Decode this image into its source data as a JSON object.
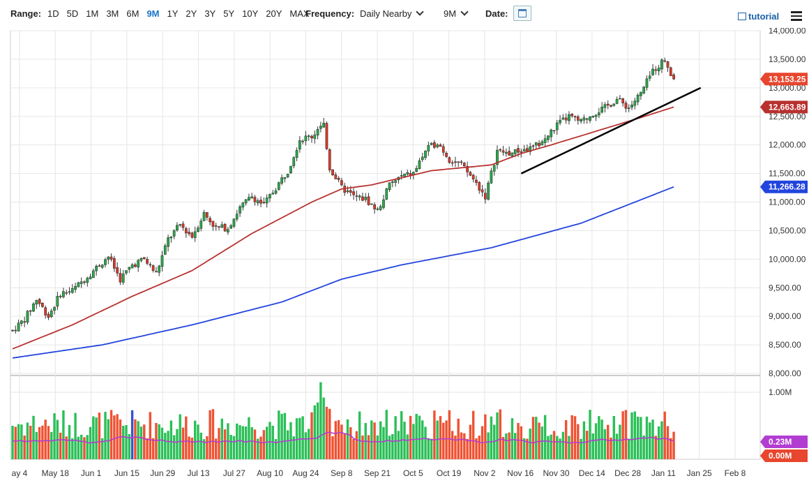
{
  "toolbar": {
    "range_label": "Range:",
    "ranges": [
      "1D",
      "5D",
      "1M",
      "3M",
      "6M",
      "9M",
      "1Y",
      "2Y",
      "3Y",
      "5Y",
      "10Y",
      "20Y",
      "MAX"
    ],
    "active_range": "9M",
    "frequency_label": "Frequency:",
    "frequency_value": "Daily Nearby",
    "period_value": "9M",
    "date_label": "Date:",
    "tutorial_label": "tutorial"
  },
  "chart_data": {
    "type": "candlestick",
    "x_ticks": [
      "ay 4",
      "May 18",
      "Jun 1",
      "Jun 15",
      "Jun 29",
      "Jul 13",
      "Jul 27",
      "Aug 10",
      "Aug 24",
      "Sep 8",
      "Sep 21",
      "Oct 5",
      "Oct 19",
      "Nov 2",
      "Nov 16",
      "Nov 30",
      "Dec 14",
      "Dec 28",
      "Jan 11",
      "Jan 25",
      "Feb 8"
    ],
    "y_ticks": [
      "14,000.00",
      "13,500.00",
      "13,000.00",
      "12,500.00",
      "12,000.00",
      "11,500.00",
      "11,000.00",
      "10,500.00",
      "10,000.00",
      "9,500.00",
      "9,000.00",
      "8,500.00",
      "8,000.00"
    ],
    "ylim": [
      8000,
      14000
    ],
    "last_price": "13,153.25",
    "ma_short_value": "12,663.89",
    "ma_long_value": "11,266.28",
    "price_anchors": [
      [
        0,
        8750
      ],
      [
        4,
        8950
      ],
      [
        8,
        9300
      ],
      [
        12,
        9000
      ],
      [
        16,
        9400
      ],
      [
        20,
        9450
      ],
      [
        24,
        9650
      ],
      [
        28,
        9850
      ],
      [
        32,
        10050
      ],
      [
        36,
        9650
      ],
      [
        40,
        9900
      ],
      [
        44,
        10000
      ],
      [
        48,
        9750
      ],
      [
        52,
        10350
      ],
      [
        56,
        10600
      ],
      [
        60,
        10400
      ],
      [
        64,
        10800
      ],
      [
        68,
        10550
      ],
      [
        72,
        10550
      ],
      [
        76,
        10900
      ],
      [
        80,
        11100
      ],
      [
        84,
        10950
      ],
      [
        88,
        11250
      ],
      [
        92,
        11550
      ],
      [
        96,
        12100
      ],
      [
        100,
        12150
      ],
      [
        104,
        12350
      ],
      [
        106,
        11600
      ],
      [
        110,
        11250
      ],
      [
        114,
        11100
      ],
      [
        118,
        11050
      ],
      [
        122,
        10850
      ],
      [
        126,
        11300
      ],
      [
        130,
        11450
      ],
      [
        134,
        11500
      ],
      [
        138,
        11900
      ],
      [
        142,
        12050
      ],
      [
        146,
        11750
      ],
      [
        150,
        11650
      ],
      [
        154,
        11400
      ],
      [
        158,
        11100
      ],
      [
        162,
        11900
      ],
      [
        166,
        11850
      ],
      [
        170,
        11900
      ],
      [
        174,
        11950
      ],
      [
        178,
        12100
      ],
      [
        182,
        12350
      ],
      [
        186,
        12500
      ],
      [
        190,
        12400
      ],
      [
        194,
        12550
      ],
      [
        198,
        12650
      ],
      [
        202,
        12800
      ],
      [
        206,
        12650
      ],
      [
        210,
        12900
      ],
      [
        214,
        13300
      ],
      [
        218,
        13500
      ],
      [
        221,
        13153
      ]
    ],
    "ma_short_anchors": [
      [
        0,
        8430
      ],
      [
        20,
        8850
      ],
      [
        40,
        9350
      ],
      [
        60,
        9800
      ],
      [
        80,
        10450
      ],
      [
        100,
        11000
      ],
      [
        110,
        11230
      ],
      [
        120,
        11300
      ],
      [
        140,
        11550
      ],
      [
        160,
        11650
      ],
      [
        170,
        11850
      ],
      [
        180,
        12000
      ],
      [
        200,
        12320
      ],
      [
        210,
        12480
      ],
      [
        221,
        12664
      ]
    ],
    "ma_long_anchors": [
      [
        0,
        8270
      ],
      [
        30,
        8500
      ],
      [
        60,
        8850
      ],
      [
        90,
        9250
      ],
      [
        110,
        9650
      ],
      [
        130,
        9900
      ],
      [
        160,
        10200
      ],
      [
        190,
        10630
      ],
      [
        221,
        11266
      ]
    ],
    "trendline": [
      [
        170,
        11500
      ],
      [
        230,
        13000
      ]
    ],
    "volume_ticks": [
      "1.00M"
    ],
    "volume_ylim": [
      0,
      1.25
    ],
    "volume_value": "0.23M",
    "volume_change_value": "0.00M"
  }
}
